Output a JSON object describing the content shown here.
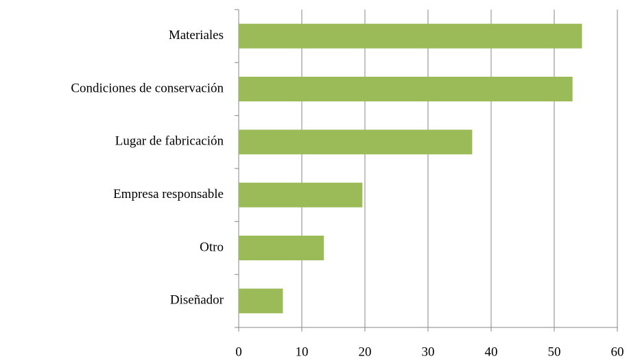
{
  "chart_data": {
    "type": "hbar",
    "categories": [
      "Materiales",
      "Condiciones de conservación",
      "Lugar de fabricación",
      "Empresa responsable",
      "Otro",
      "Diseñador"
    ],
    "values": [
      54.4,
      52.9,
      37,
      19.6,
      13.5,
      7
    ],
    "color": "#9bbb59",
    "xlim": [
      0,
      60
    ],
    "xticks": [
      0,
      10,
      20,
      30,
      40,
      50,
      60
    ],
    "grid": true
  }
}
